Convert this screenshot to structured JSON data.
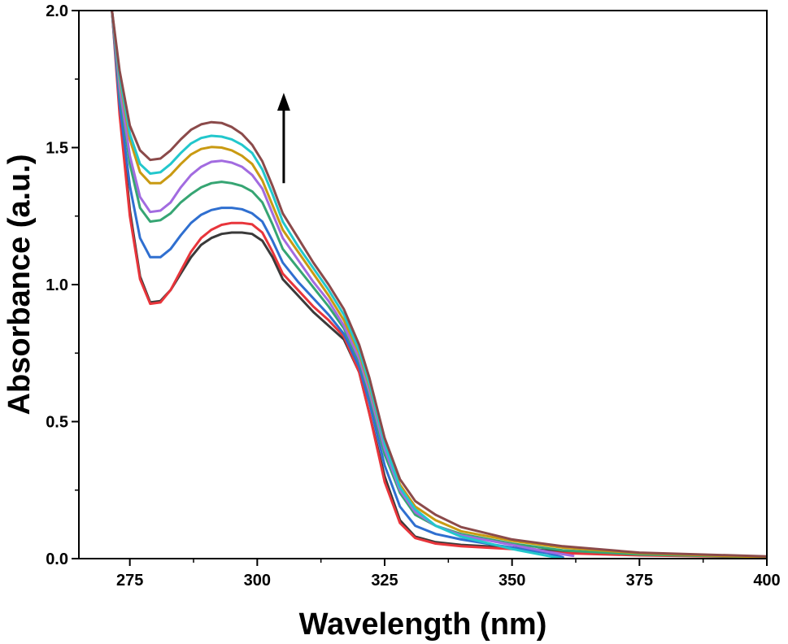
{
  "chart_data": {
    "type": "line",
    "title": "",
    "xlabel": "Wavelength (nm)",
    "ylabel": "Absorbance (a.u.)",
    "xlim": [
      265,
      400
    ],
    "ylim": [
      0.0,
      2.0
    ],
    "x_ticks": [
      "275",
      "300",
      "325",
      "350",
      "375",
      "400"
    ],
    "x_tick_values": [
      275,
      300,
      325,
      350,
      375,
      400
    ],
    "y_ticks": [
      "0.0",
      "0.5",
      "1.0",
      "1.5",
      "2.0"
    ],
    "y_tick_values": [
      0.0,
      0.5,
      1.0,
      1.5,
      2.0
    ],
    "grid": false,
    "legend": "none",
    "annotation": {
      "type": "arrow",
      "direction": "up",
      "x": 305.2,
      "y_start": 1.37,
      "y_end": 1.7
    },
    "series": [
      {
        "color": "#3a3a3a",
        "points": [
          [
            271.5,
            2.0
          ],
          [
            273,
            1.65
          ],
          [
            275,
            1.27
          ],
          [
            277,
            1.03
          ],
          [
            279,
            0.935
          ],
          [
            281,
            0.94
          ],
          [
            283,
            0.98
          ],
          [
            285,
            1.04
          ],
          [
            287,
            1.1
          ],
          [
            289,
            1.145
          ],
          [
            291,
            1.17
          ],
          [
            293,
            1.185
          ],
          [
            295,
            1.19
          ],
          [
            297,
            1.19
          ],
          [
            299,
            1.185
          ],
          [
            301,
            1.16
          ],
          [
            303,
            1.1
          ],
          [
            305,
            1.02
          ],
          [
            308,
            0.96
          ],
          [
            311,
            0.9
          ],
          [
            314,
            0.85
          ],
          [
            317,
            0.8
          ],
          [
            320,
            0.68
          ],
          [
            322,
            0.53
          ],
          [
            325,
            0.3
          ],
          [
            328,
            0.14
          ],
          [
            331,
            0.08
          ],
          [
            335,
            0.06
          ],
          [
            340,
            0.05
          ],
          [
            350,
            0.04
          ],
          [
            360,
            0.025
          ],
          [
            375,
            0.015
          ],
          [
            400,
            0.005
          ]
        ]
      },
      {
        "color": "#e8353b",
        "points": [
          [
            271.5,
            2.0
          ],
          [
            273,
            1.62
          ],
          [
            275,
            1.25
          ],
          [
            277,
            1.02
          ],
          [
            279,
            0.93
          ],
          [
            281,
            0.935
          ],
          [
            283,
            0.98
          ],
          [
            285,
            1.05
          ],
          [
            287,
            1.12
          ],
          [
            289,
            1.17
          ],
          [
            291,
            1.2
          ],
          [
            293,
            1.218
          ],
          [
            295,
            1.225
          ],
          [
            297,
            1.225
          ],
          [
            299,
            1.22
          ],
          [
            301,
            1.19
          ],
          [
            303,
            1.12
          ],
          [
            305,
            1.04
          ],
          [
            308,
            0.98
          ],
          [
            311,
            0.92
          ],
          [
            314,
            0.87
          ],
          [
            317,
            0.81
          ],
          [
            320,
            0.68
          ],
          [
            322,
            0.53
          ],
          [
            325,
            0.28
          ],
          [
            328,
            0.13
          ],
          [
            331,
            0.075
          ],
          [
            335,
            0.055
          ],
          [
            340,
            0.045
          ],
          [
            350,
            0.035
          ],
          [
            360,
            0.02
          ],
          [
            375,
            0.012
          ],
          [
            400,
            0.005
          ]
        ]
      },
      {
        "color": "#2f6fd0",
        "points": [
          [
            271.5,
            2.0
          ],
          [
            273,
            1.66
          ],
          [
            275,
            1.36
          ],
          [
            277,
            1.17
          ],
          [
            279,
            1.1
          ],
          [
            281,
            1.1
          ],
          [
            283,
            1.13
          ],
          [
            285,
            1.18
          ],
          [
            287,
            1.225
          ],
          [
            289,
            1.255
          ],
          [
            291,
            1.272
          ],
          [
            293,
            1.28
          ],
          [
            295,
            1.28
          ],
          [
            297,
            1.275
          ],
          [
            299,
            1.26
          ],
          [
            301,
            1.23
          ],
          [
            303,
            1.16
          ],
          [
            305,
            1.08
          ],
          [
            308,
            1.01
          ],
          [
            311,
            0.95
          ],
          [
            314,
            0.89
          ],
          [
            317,
            0.82
          ],
          [
            320,
            0.7
          ],
          [
            322,
            0.57
          ],
          [
            325,
            0.34
          ],
          [
            328,
            0.19
          ],
          [
            331,
            0.12
          ],
          [
            335,
            0.09
          ],
          [
            340,
            0.07
          ],
          [
            350,
            0.04
          ],
          [
            357,
            0.02
          ],
          [
            360,
            0.005
          ]
        ]
      },
      {
        "color": "#36a573",
        "points": [
          [
            271.5,
            2.0
          ],
          [
            273,
            1.7
          ],
          [
            275,
            1.44
          ],
          [
            277,
            1.28
          ],
          [
            279,
            1.23
          ],
          [
            281,
            1.235
          ],
          [
            283,
            1.26
          ],
          [
            285,
            1.3
          ],
          [
            287,
            1.33
          ],
          [
            289,
            1.355
          ],
          [
            291,
            1.37
          ],
          [
            293,
            1.375
          ],
          [
            295,
            1.37
          ],
          [
            297,
            1.36
          ],
          [
            299,
            1.34
          ],
          [
            301,
            1.3
          ],
          [
            303,
            1.22
          ],
          [
            305,
            1.13
          ],
          [
            308,
            1.06
          ],
          [
            311,
            0.99
          ],
          [
            314,
            0.92
          ],
          [
            317,
            0.84
          ],
          [
            320,
            0.72
          ],
          [
            322,
            0.6
          ],
          [
            325,
            0.38
          ],
          [
            328,
            0.24
          ],
          [
            331,
            0.16
          ],
          [
            335,
            0.12
          ],
          [
            340,
            0.09
          ],
          [
            350,
            0.055
          ],
          [
            360,
            0.03
          ],
          [
            375,
            0.015
          ],
          [
            400,
            0.005
          ]
        ]
      },
      {
        "color": "#a26be0",
        "points": [
          [
            271.5,
            2.0
          ],
          [
            273,
            1.72
          ],
          [
            275,
            1.47
          ],
          [
            277,
            1.32
          ],
          [
            279,
            1.265
          ],
          [
            281,
            1.27
          ],
          [
            283,
            1.3
          ],
          [
            285,
            1.355
          ],
          [
            287,
            1.4
          ],
          [
            289,
            1.43
          ],
          [
            291,
            1.448
          ],
          [
            293,
            1.452
          ],
          [
            295,
            1.445
          ],
          [
            297,
            1.43
          ],
          [
            299,
            1.4
          ],
          [
            301,
            1.35
          ],
          [
            303,
            1.26
          ],
          [
            305,
            1.17
          ],
          [
            308,
            1.09
          ],
          [
            311,
            1.01
          ],
          [
            314,
            0.94
          ],
          [
            317,
            0.85
          ],
          [
            320,
            0.73
          ],
          [
            322,
            0.61
          ],
          [
            325,
            0.4
          ],
          [
            328,
            0.25
          ],
          [
            331,
            0.17
          ],
          [
            335,
            0.12
          ],
          [
            340,
            0.085
          ],
          [
            350,
            0.05
          ],
          [
            357,
            0.025
          ],
          [
            362,
            0.01
          ]
        ]
      },
      {
        "color": "#c99a12",
        "points": [
          [
            271.5,
            2.0
          ],
          [
            273,
            1.75
          ],
          [
            275,
            1.53
          ],
          [
            277,
            1.41
          ],
          [
            279,
            1.37
          ],
          [
            281,
            1.37
          ],
          [
            283,
            1.4
          ],
          [
            285,
            1.44
          ],
          [
            287,
            1.475
          ],
          [
            289,
            1.495
          ],
          [
            291,
            1.502
          ],
          [
            293,
            1.5
          ],
          [
            295,
            1.49
          ],
          [
            297,
            1.47
          ],
          [
            299,
            1.44
          ],
          [
            301,
            1.38
          ],
          [
            303,
            1.29
          ],
          [
            305,
            1.2
          ],
          [
            308,
            1.12
          ],
          [
            311,
            1.04
          ],
          [
            314,
            0.96
          ],
          [
            317,
            0.87
          ],
          [
            320,
            0.75
          ],
          [
            322,
            0.63
          ],
          [
            325,
            0.42
          ],
          [
            328,
            0.27
          ],
          [
            331,
            0.19
          ],
          [
            335,
            0.14
          ],
          [
            340,
            0.1
          ],
          [
            350,
            0.065
          ],
          [
            360,
            0.04
          ],
          [
            375,
            0.02
          ],
          [
            400,
            0.005
          ]
        ]
      },
      {
        "color": "#22c7cc",
        "points": [
          [
            271.5,
            2.0
          ],
          [
            273,
            1.76
          ],
          [
            275,
            1.55
          ],
          [
            277,
            1.44
          ],
          [
            279,
            1.405
          ],
          [
            281,
            1.41
          ],
          [
            283,
            1.44
          ],
          [
            285,
            1.48
          ],
          [
            287,
            1.515
          ],
          [
            289,
            1.535
          ],
          [
            291,
            1.543
          ],
          [
            293,
            1.54
          ],
          [
            295,
            1.53
          ],
          [
            297,
            1.51
          ],
          [
            299,
            1.48
          ],
          [
            301,
            1.42
          ],
          [
            303,
            1.33
          ],
          [
            305,
            1.23
          ],
          [
            308,
            1.14
          ],
          [
            311,
            1.06
          ],
          [
            314,
            0.98
          ],
          [
            317,
            0.89
          ],
          [
            320,
            0.76
          ],
          [
            322,
            0.64
          ],
          [
            325,
            0.42
          ],
          [
            328,
            0.26
          ],
          [
            331,
            0.18
          ],
          [
            335,
            0.12
          ],
          [
            340,
            0.08
          ],
          [
            350,
            0.035
          ],
          [
            357,
            0.01
          ],
          [
            360,
            0.0
          ]
        ]
      },
      {
        "color": "#8b4a4a",
        "points": [
          [
            271.5,
            2.0
          ],
          [
            273,
            1.78
          ],
          [
            275,
            1.58
          ],
          [
            277,
            1.49
          ],
          [
            279,
            1.455
          ],
          [
            281,
            1.46
          ],
          [
            283,
            1.49
          ],
          [
            285,
            1.53
          ],
          [
            287,
            1.565
          ],
          [
            289,
            1.585
          ],
          [
            291,
            1.593
          ],
          [
            293,
            1.59
          ],
          [
            295,
            1.575
          ],
          [
            297,
            1.55
          ],
          [
            299,
            1.51
          ],
          [
            301,
            1.45
          ],
          [
            303,
            1.36
          ],
          [
            305,
            1.26
          ],
          [
            308,
            1.17
          ],
          [
            311,
            1.08
          ],
          [
            314,
            1.0
          ],
          [
            317,
            0.91
          ],
          [
            320,
            0.78
          ],
          [
            322,
            0.66
          ],
          [
            325,
            0.44
          ],
          [
            328,
            0.29
          ],
          [
            331,
            0.21
          ],
          [
            335,
            0.16
          ],
          [
            340,
            0.115
          ],
          [
            350,
            0.07
          ],
          [
            360,
            0.045
          ],
          [
            375,
            0.022
          ],
          [
            400,
            0.008
          ]
        ]
      }
    ]
  }
}
